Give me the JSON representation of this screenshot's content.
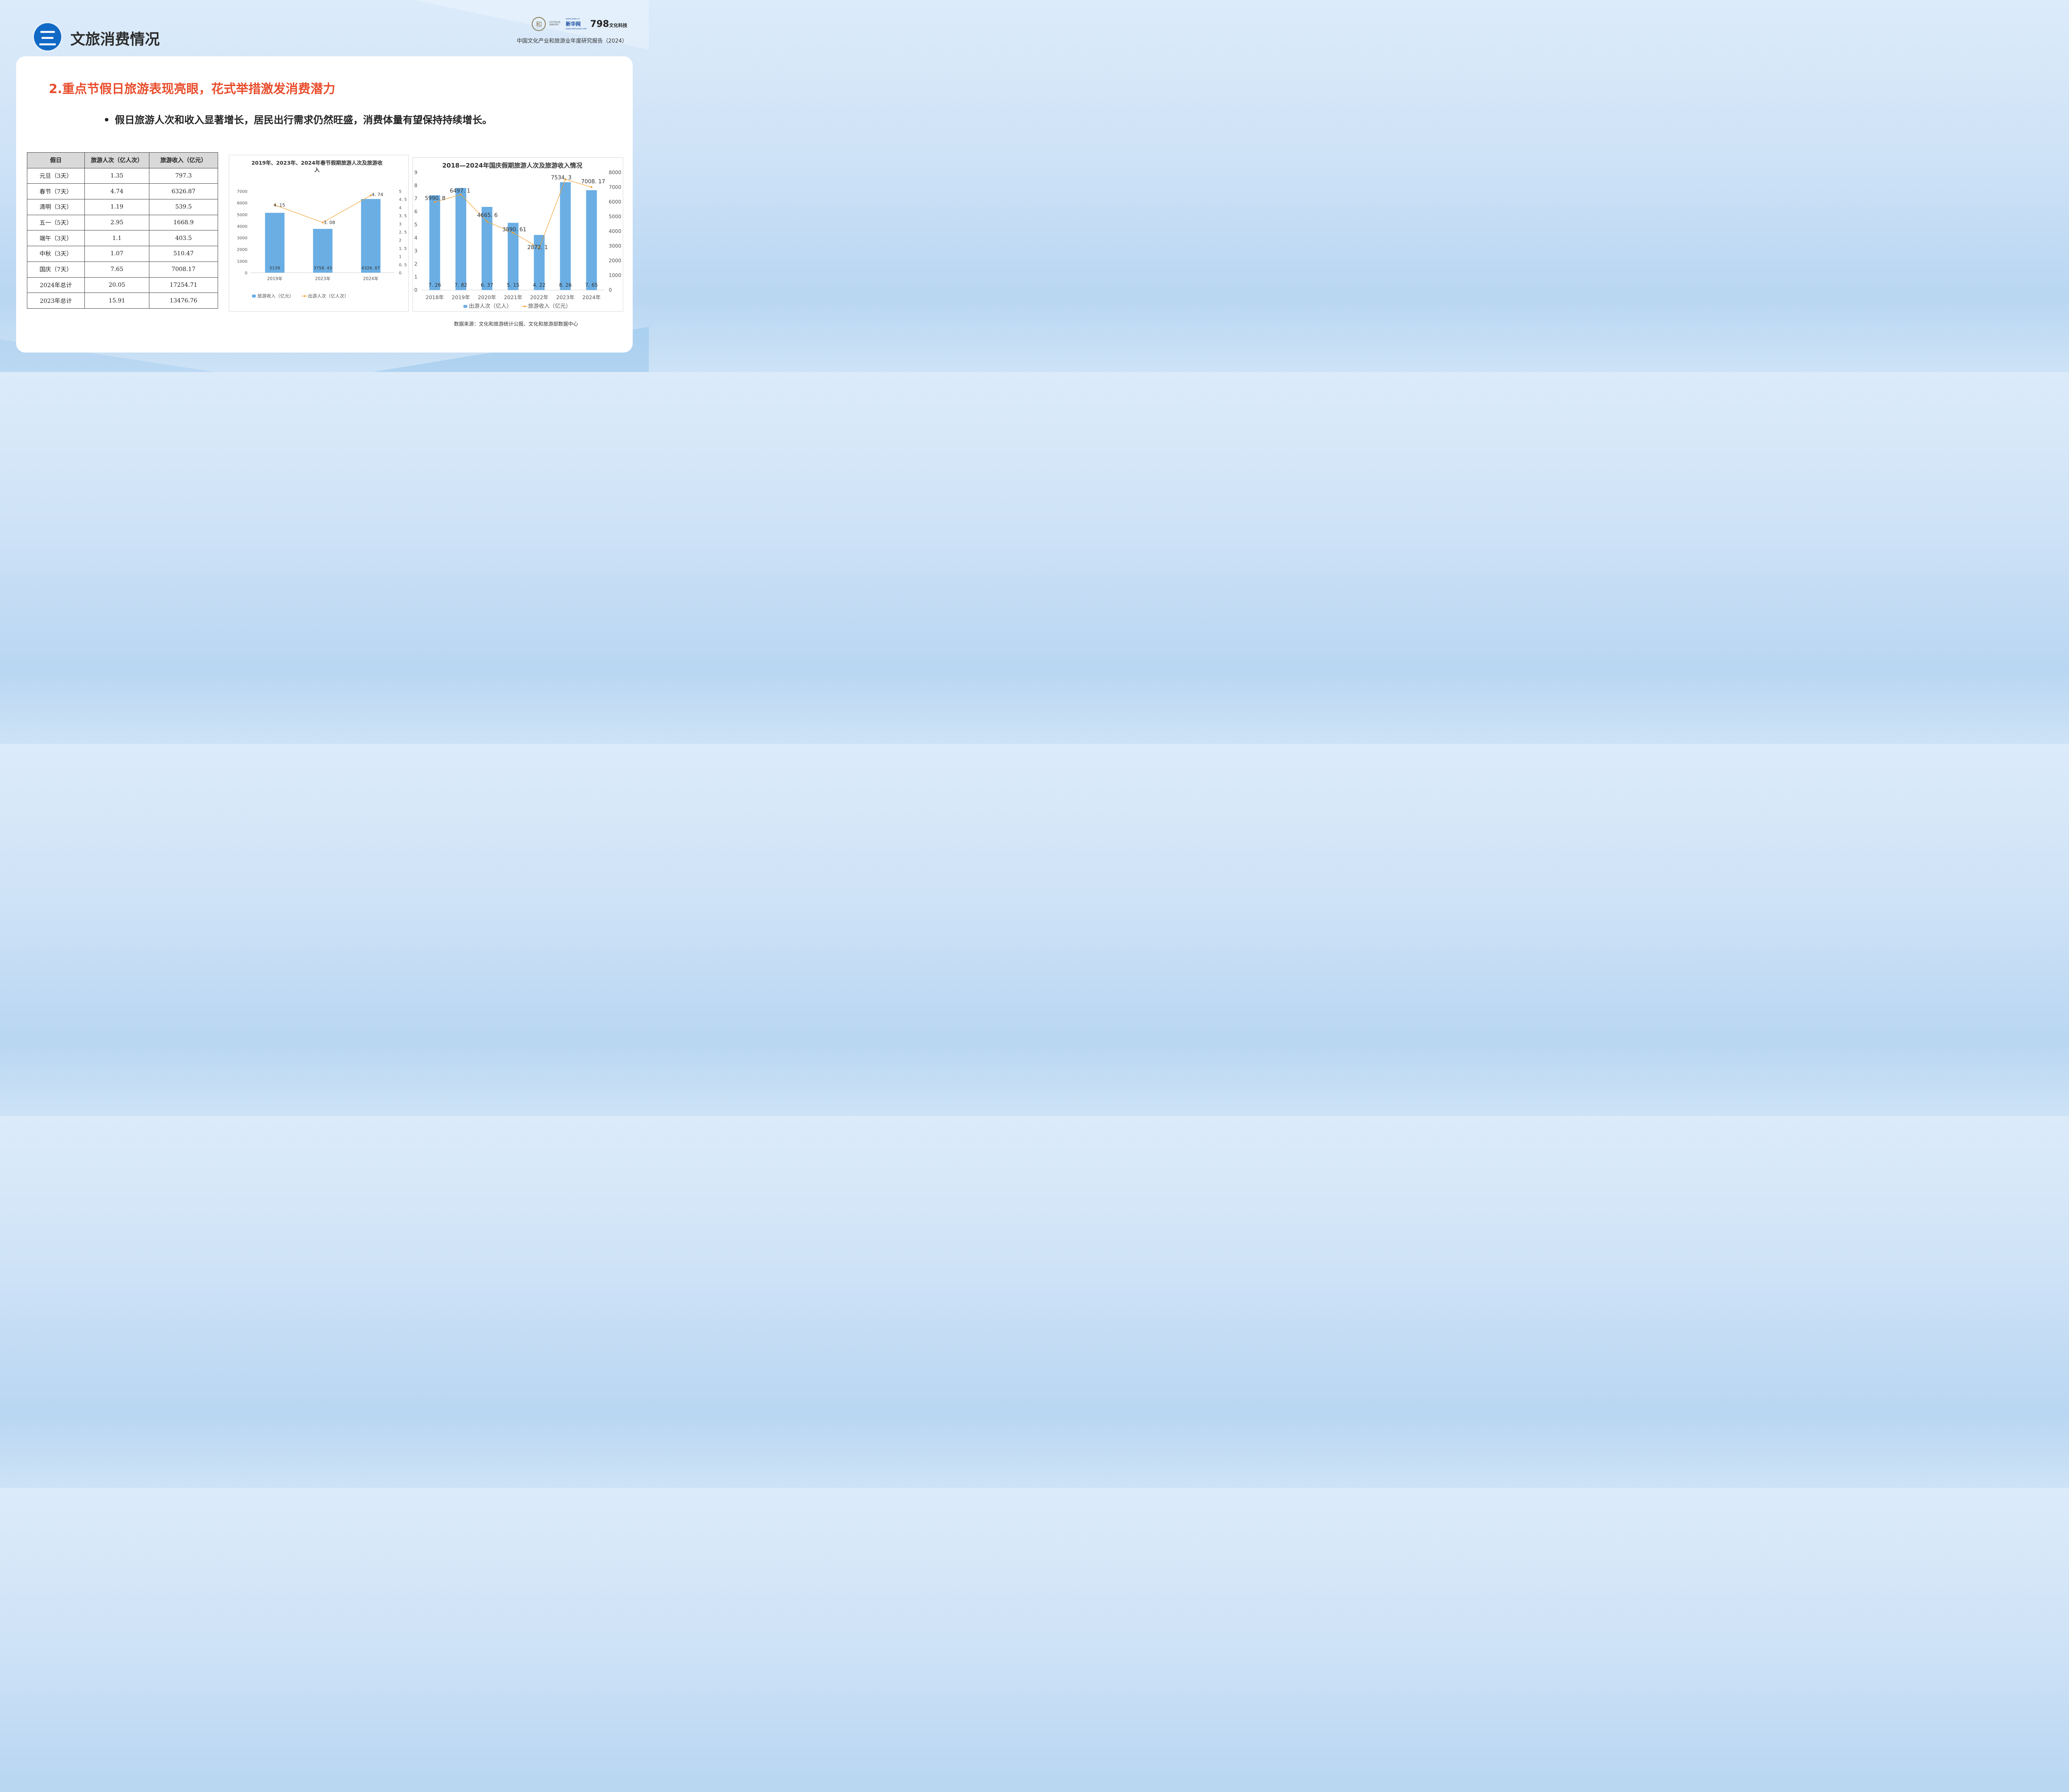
{
  "header": {
    "section_number": "三",
    "section_title": "文旅消费情况",
    "report_title": "中国文化产业和旅游业年度研究报告（2024）",
    "logos": {
      "seal_char": "和",
      "institute": "北京京和文旅 发展研究院",
      "news_url": "www.news.cn",
      "news_name": "新华网",
      "news_sub": "www.xinhuanet.com",
      "brand_798": "798",
      "brand_798_text": "文化科技"
    }
  },
  "headline": "2.重点节假日旅游表现亮眼，花式举措激发消费潜力",
  "bullet": "假日旅游人次和收入显著增长，居民出行需求仍然旺盛，消费体量有望保持持续增长。",
  "table": {
    "headers": [
      "假日",
      "旅游人次（亿人次）",
      "旅游收入（亿元）"
    ],
    "rows": [
      [
        "元旦（3天）",
        "1.35",
        "797.3"
      ],
      [
        "春节（7天）",
        "4.74",
        "6326.87"
      ],
      [
        "清明（3天）",
        "1.19",
        "539.5"
      ],
      [
        "五一（5天）",
        "2.95",
        "1668.9"
      ],
      [
        "端午（3天）",
        "1.1",
        "403.5"
      ],
      [
        "中秋（3天）",
        "1.07",
        "510.47"
      ],
      [
        "国庆（7天）",
        "7.65",
        "7008.17"
      ],
      [
        "2024年总计",
        "20.05",
        "17254.71"
      ],
      [
        "2023年总计",
        "15.91",
        "13476.76"
      ]
    ]
  },
  "chart_data": [
    {
      "type": "bar",
      "title_line1": "2019年、2023年、2024年春节假期旅游人次及旅游收",
      "title_line2": "入",
      "categories": [
        "2019年",
        "2023年",
        "2024年"
      ],
      "series": [
        {
          "name": "旅游收入（亿元）",
          "type": "bar",
          "axis": "left",
          "color": "#6aaee4",
          "values": [
            5139,
            3758.43,
            6326.87
          ],
          "labels": [
            "5139",
            "3758. 43",
            "6326. 87"
          ]
        },
        {
          "name": "出游人次（亿人次）",
          "type": "line",
          "axis": "right",
          "color": "#f0a030",
          "values": [
            4.15,
            3.08,
            4.74
          ],
          "labels": [
            "4. 15",
            "3. 08",
            "4. 74"
          ]
        }
      ],
      "left_axis": {
        "min": 0,
        "max": 7000,
        "ticks": [
          "0",
          "1000",
          "2000",
          "3000",
          "4000",
          "5000",
          "6000",
          "7000"
        ]
      },
      "right_axis": {
        "min": 0,
        "max": 5,
        "ticks": [
          "0",
          "0. 5",
          "1",
          "1. 5",
          "2",
          "2. 5",
          "3",
          "3. 5",
          "4",
          "4. 5",
          "5"
        ]
      },
      "legend": "bottom",
      "grid": false
    },
    {
      "type": "bar",
      "title": "2018—2024年国庆假期旅游人次及旅游收入情况",
      "categories": [
        "2018年",
        "2019年",
        "2020年",
        "2021年",
        "2022年",
        "2023年",
        "2024年"
      ],
      "series": [
        {
          "name": "出游人次（亿人）",
          "type": "bar",
          "axis": "left",
          "color": "#6aaee4",
          "values": [
            7.26,
            7.82,
            6.37,
            5.15,
            4.22,
            8.26,
            7.65
          ],
          "labels": [
            "7. 26",
            "7. 82",
            "6. 37",
            "5. 15",
            "4. 22",
            "8. 26",
            "7. 65"
          ]
        },
        {
          "name": "旅游收入（亿元）",
          "type": "line",
          "axis": "right",
          "color": "#f0a030",
          "values": [
            5990.8,
            6497.1,
            4665.6,
            3890.61,
            2872.1,
            7534.3,
            7008.17
          ],
          "labels": [
            "5990. 8",
            "6497. 1",
            "4665. 6",
            "3890. 61",
            "2872. 1",
            "7534. 3",
            "7008. 17"
          ]
        }
      ],
      "left_axis": {
        "min": 0,
        "max": 9,
        "ticks": [
          "0",
          "1",
          "2",
          "3",
          "4",
          "5",
          "6",
          "7",
          "8",
          "9"
        ]
      },
      "right_axis": {
        "min": 0,
        "max": 8000,
        "ticks": [
          "0",
          "1000",
          "2000",
          "3000",
          "4000",
          "5000",
          "6000",
          "7000",
          "8000"
        ]
      },
      "legend": "bottom",
      "grid": false
    }
  ],
  "source": "数据来源：文化和旅游统计公报、文化和旅游部数据中心"
}
